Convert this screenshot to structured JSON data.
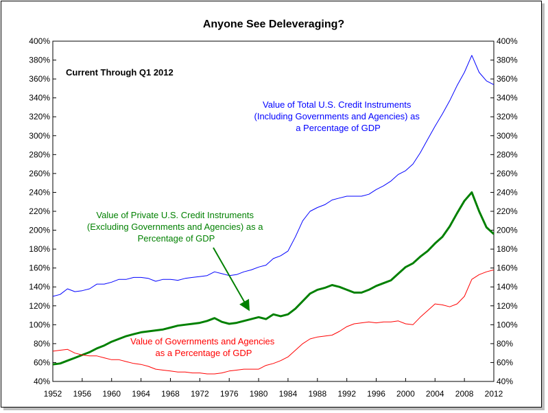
{
  "chart_data": {
    "type": "line",
    "title": "Anyone See Deleveraging?",
    "subtitle": "Current Through Q1 2012",
    "xlabel": "",
    "ylabel": "",
    "xlim": [
      1952,
      2012
    ],
    "ylim": [
      40,
      400
    ],
    "x_ticks": [
      "1952",
      "1956",
      "1960",
      "1964",
      "1968",
      "1972",
      "1976",
      "1980",
      "1984",
      "1988",
      "1992",
      "1996",
      "2000",
      "2004",
      "2008",
      "2012"
    ],
    "y_ticks": [
      "40%",
      "60%",
      "80%",
      "100%",
      "120%",
      "140%",
      "160%",
      "180%",
      "200%",
      "220%",
      "240%",
      "260%",
      "280%",
      "300%",
      "320%",
      "340%",
      "360%",
      "380%",
      "400%"
    ],
    "grid": false,
    "legend": "none",
    "series": [
      {
        "name": "Value of Total U.S. Credit Instruments (Including Governments and Agencies) as a Percentage of GDP",
        "color": "#0000ff",
        "points": [
          [
            1952,
            130
          ],
          [
            1953,
            132
          ],
          [
            1954,
            138
          ],
          [
            1955,
            135
          ],
          [
            1956,
            136
          ],
          [
            1957,
            138
          ],
          [
            1958,
            143
          ],
          [
            1959,
            143
          ],
          [
            1960,
            145
          ],
          [
            1961,
            148
          ],
          [
            1962,
            148
          ],
          [
            1963,
            150
          ],
          [
            1964,
            150
          ],
          [
            1965,
            149
          ],
          [
            1966,
            146
          ],
          [
            1967,
            148
          ],
          [
            1968,
            148
          ],
          [
            1969,
            147
          ],
          [
            1970,
            149
          ],
          [
            1971,
            150
          ],
          [
            1972,
            151
          ],
          [
            1973,
            152
          ],
          [
            1974,
            156
          ],
          [
            1975,
            154
          ],
          [
            1976,
            152
          ],
          [
            1977,
            153
          ],
          [
            1978,
            156
          ],
          [
            1979,
            158
          ],
          [
            1980,
            161
          ],
          [
            1981,
            163
          ],
          [
            1982,
            170
          ],
          [
            1983,
            173
          ],
          [
            1984,
            178
          ],
          [
            1985,
            193
          ],
          [
            1986,
            210
          ],
          [
            1987,
            220
          ],
          [
            1988,
            224
          ],
          [
            1989,
            227
          ],
          [
            1990,
            232
          ],
          [
            1991,
            234
          ],
          [
            1992,
            236
          ],
          [
            1993,
            236
          ],
          [
            1994,
            236
          ],
          [
            1995,
            238
          ],
          [
            1996,
            243
          ],
          [
            1997,
            247
          ],
          [
            1998,
            252
          ],
          [
            1999,
            259
          ],
          [
            2000,
            263
          ],
          [
            2001,
            270
          ],
          [
            2002,
            282
          ],
          [
            2003,
            296
          ],
          [
            2004,
            310
          ],
          [
            2005,
            323
          ],
          [
            2006,
            337
          ],
          [
            2007,
            353
          ],
          [
            2008,
            367
          ],
          [
            2009,
            385
          ],
          [
            2010,
            367
          ],
          [
            2011,
            358
          ],
          [
            2012,
            354
          ]
        ]
      },
      {
        "name": "Value of Private U.S. Credit Instruments (Excluding Governments and Agencies) as a Percentage of GDP",
        "color": "#008000",
        "points": [
          [
            1952,
            58
          ],
          [
            1953,
            59
          ],
          [
            1954,
            62
          ],
          [
            1955,
            65
          ],
          [
            1956,
            68
          ],
          [
            1957,
            71
          ],
          [
            1958,
            75
          ],
          [
            1959,
            78
          ],
          [
            1960,
            82
          ],
          [
            1961,
            85
          ],
          [
            1962,
            88
          ],
          [
            1963,
            90
          ],
          [
            1964,
            92
          ],
          [
            1965,
            93
          ],
          [
            1966,
            94
          ],
          [
            1967,
            95
          ],
          [
            1968,
            97
          ],
          [
            1969,
            99
          ],
          [
            1970,
            100
          ],
          [
            1971,
            101
          ],
          [
            1972,
            102
          ],
          [
            1973,
            104
          ],
          [
            1974,
            107
          ],
          [
            1975,
            103
          ],
          [
            1976,
            101
          ],
          [
            1977,
            102
          ],
          [
            1978,
            104
          ],
          [
            1979,
            106
          ],
          [
            1980,
            108
          ],
          [
            1981,
            106
          ],
          [
            1982,
            111
          ],
          [
            1983,
            109
          ],
          [
            1984,
            111
          ],
          [
            1985,
            117
          ],
          [
            1986,
            125
          ],
          [
            1987,
            133
          ],
          [
            1988,
            137
          ],
          [
            1989,
            139
          ],
          [
            1990,
            142
          ],
          [
            1991,
            140
          ],
          [
            1992,
            137
          ],
          [
            1993,
            134
          ],
          [
            1994,
            134
          ],
          [
            1995,
            137
          ],
          [
            1996,
            141
          ],
          [
            1997,
            144
          ],
          [
            1998,
            147
          ],
          [
            1999,
            154
          ],
          [
            2000,
            161
          ],
          [
            2001,
            165
          ],
          [
            2002,
            172
          ],
          [
            2003,
            178
          ],
          [
            2004,
            186
          ],
          [
            2005,
            193
          ],
          [
            2006,
            204
          ],
          [
            2007,
            218
          ],
          [
            2008,
            231
          ],
          [
            2009,
            240
          ],
          [
            2010,
            220
          ],
          [
            2011,
            203
          ],
          [
            2012,
            196
          ]
        ]
      },
      {
        "name": "Value of Governments and Agencies as a Percentage of GDP",
        "color": "#ff0000",
        "points": [
          [
            1952,
            72
          ],
          [
            1953,
            73
          ],
          [
            1954,
            74
          ],
          [
            1955,
            70
          ],
          [
            1956,
            68
          ],
          [
            1957,
            67
          ],
          [
            1958,
            67
          ],
          [
            1959,
            65
          ],
          [
            1960,
            63
          ],
          [
            1961,
            63
          ],
          [
            1962,
            61
          ],
          [
            1963,
            59
          ],
          [
            1964,
            58
          ],
          [
            1965,
            56
          ],
          [
            1966,
            53
          ],
          [
            1967,
            52
          ],
          [
            1968,
            51
          ],
          [
            1969,
            50
          ],
          [
            1970,
            50
          ],
          [
            1971,
            49
          ],
          [
            1972,
            49
          ],
          [
            1973,
            48
          ],
          [
            1974,
            48
          ],
          [
            1975,
            49
          ],
          [
            1976,
            51
          ],
          [
            1977,
            52
          ],
          [
            1978,
            53
          ],
          [
            1979,
            53
          ],
          [
            1980,
            53
          ],
          [
            1981,
            57
          ],
          [
            1982,
            59
          ],
          [
            1983,
            62
          ],
          [
            1984,
            66
          ],
          [
            1985,
            73
          ],
          [
            1986,
            80
          ],
          [
            1987,
            85
          ],
          [
            1988,
            87
          ],
          [
            1989,
            88
          ],
          [
            1990,
            89
          ],
          [
            1991,
            93
          ],
          [
            1992,
            98
          ],
          [
            1993,
            101
          ],
          [
            1994,
            102
          ],
          [
            1995,
            103
          ],
          [
            1996,
            102
          ],
          [
            1997,
            103
          ],
          [
            1998,
            103
          ],
          [
            1999,
            104
          ],
          [
            2000,
            101
          ],
          [
            2001,
            100
          ],
          [
            2002,
            108
          ],
          [
            2003,
            115
          ],
          [
            2004,
            122
          ],
          [
            2005,
            121
          ],
          [
            2006,
            119
          ],
          [
            2007,
            122
          ],
          [
            2008,
            130
          ],
          [
            2009,
            148
          ],
          [
            2010,
            153
          ],
          [
            2011,
            156
          ],
          [
            2012,
            158
          ]
        ]
      }
    ],
    "annotations": {
      "total": [
        "Value of Total U.S. Credit Instruments",
        "(Including Governments and Agencies) as",
        "a Percentage of GDP"
      ],
      "private": [
        "Value of Private U.S. Credit Instruments",
        "(Excluding Governments and Agencies) as a",
        "Percentage of GDP"
      ],
      "govt": [
        "Value of Governments and Agencies",
        "as a Percentage of GDP"
      ]
    }
  }
}
